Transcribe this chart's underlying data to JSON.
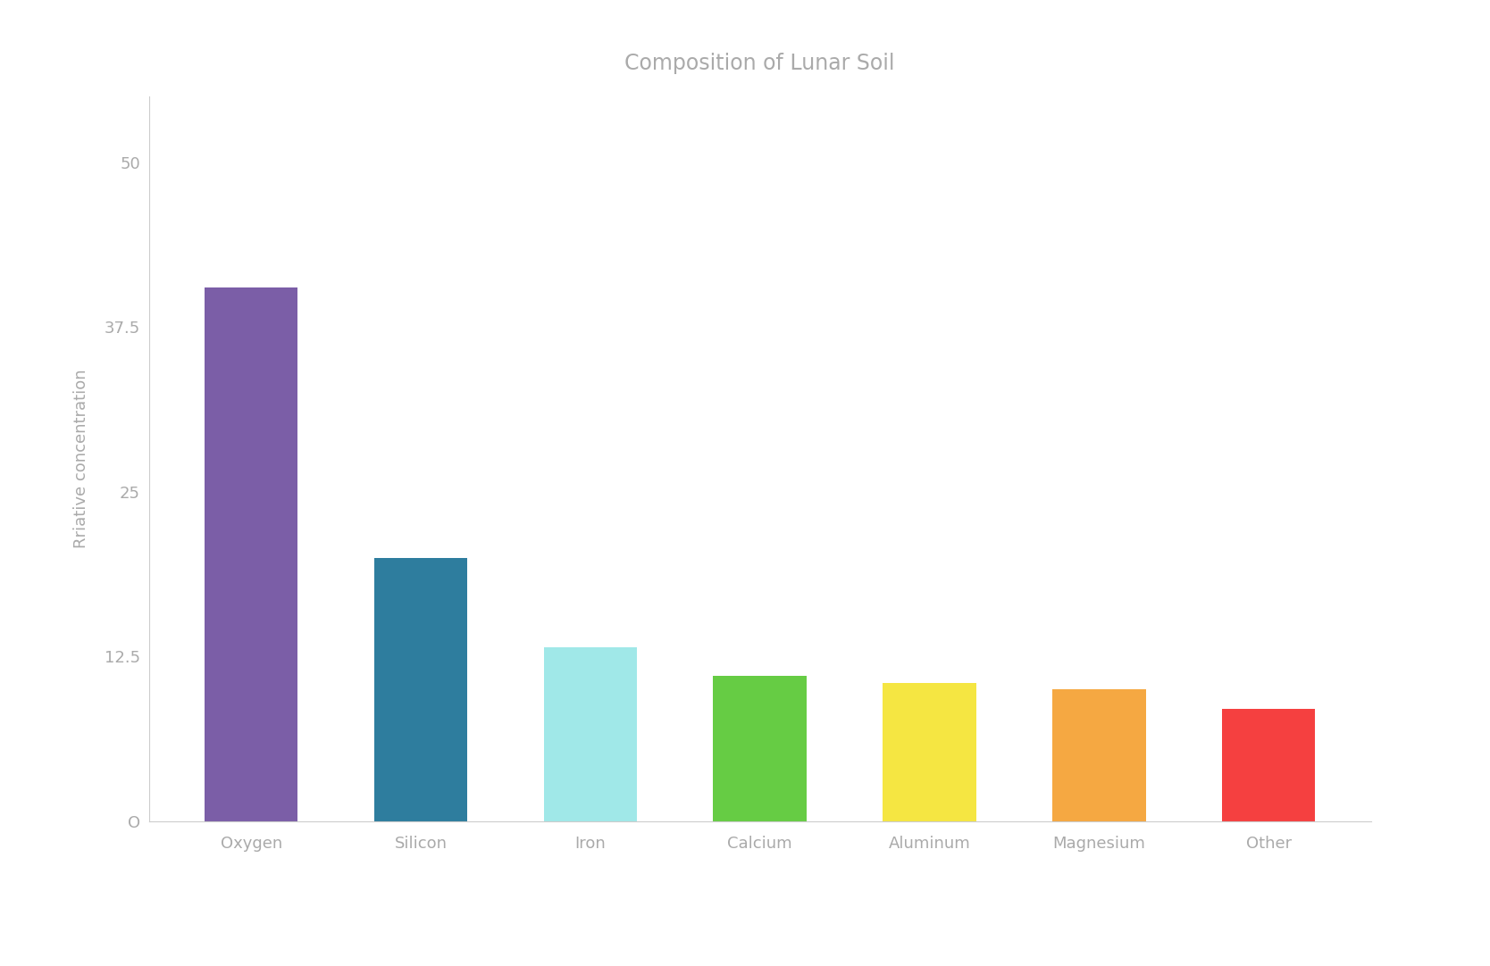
{
  "title": "Composition of Lunar Soil",
  "ylabel": "Rriative concentration",
  "categories": [
    "Oxygen",
    "Silicon",
    "Iron",
    "Calcium",
    "Aluminum",
    "Magnesium",
    "Other"
  ],
  "values": [
    40.5,
    20.0,
    13.2,
    11.0,
    10.5,
    10.0,
    8.5
  ],
  "bar_colors": [
    "#7B5EA7",
    "#2E7D9E",
    "#A0E8E8",
    "#66CC44",
    "#F5E642",
    "#F5A842",
    "#F54040"
  ],
  "background_color": "#FFFFFF",
  "title_color": "#AAAAAA",
  "ylabel_color": "#AAAAAA",
  "tick_color": "#AAAAAA",
  "yticks": [
    0,
    12.5,
    25,
    37.5,
    50
  ],
  "ytick_labels": [
    "O",
    "12.5",
    "25",
    "37.5",
    "50"
  ],
  "ylim": [
    0,
    55
  ],
  "title_fontsize": 17,
  "label_fontsize": 13,
  "tick_fontsize": 13,
  "bar_width": 0.55
}
